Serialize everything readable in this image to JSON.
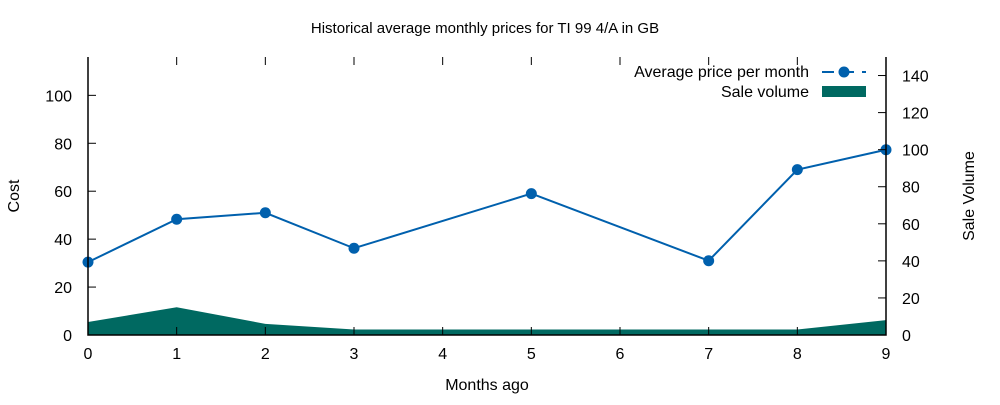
{
  "chart_data": {
    "type": "line",
    "title": "Historical average monthly prices for TI 99 4/A in GB",
    "xlabel": "Months ago",
    "ylabel": "Cost",
    "y2label": "Sale Volume",
    "xlim": [
      0,
      9
    ],
    "ylim": [
      0,
      116
    ],
    "y2lim": [
      0,
      150
    ],
    "xticks": [
      0,
      1,
      2,
      3,
      4,
      5,
      6,
      7,
      8,
      9
    ],
    "yticks": [
      0,
      20,
      40,
      60,
      80,
      100
    ],
    "y2ticks": [
      0,
      20,
      40,
      60,
      80,
      100,
      120,
      140
    ],
    "grid": false,
    "legend_placement": "top-right",
    "series": [
      {
        "name": "Average price per month",
        "type": "line",
        "axis": "left",
        "color": "#0060ad",
        "x": [
          0,
          1,
          2,
          3,
          5,
          7,
          8,
          9
        ],
        "values": [
          30.4,
          48.3,
          51.0,
          36.2,
          59.0,
          31.0,
          69.0,
          77.3
        ]
      },
      {
        "name": "Sale volume",
        "type": "area",
        "axis": "right",
        "color": "#006961",
        "x": [
          0,
          1,
          2,
          3,
          4,
          5,
          6,
          7,
          8,
          9
        ],
        "values": [
          7,
          15,
          6,
          3,
          3,
          3,
          3,
          3,
          3,
          8
        ]
      }
    ]
  }
}
